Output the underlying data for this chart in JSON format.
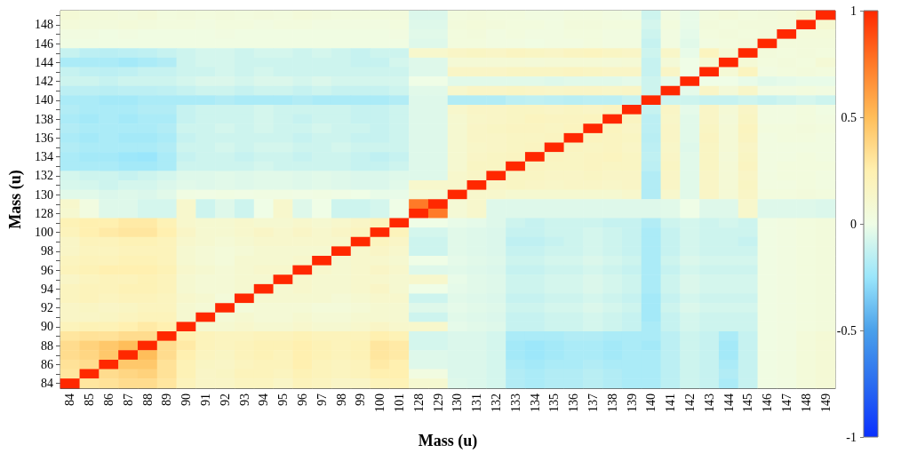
{
  "chart_data": {
    "type": "heatmap",
    "xlabel": "Mass (u)",
    "ylabel": "Mass (u)",
    "categories": [
      "84",
      "85",
      "86",
      "87",
      "88",
      "89",
      "90",
      "91",
      "92",
      "93",
      "94",
      "95",
      "96",
      "97",
      "98",
      "99",
      "100",
      "101",
      "128",
      "129",
      "130",
      "131",
      "132",
      "133",
      "134",
      "135",
      "136",
      "137",
      "138",
      "139",
      "140",
      "141",
      "142",
      "143",
      "144",
      "145",
      "146",
      "147",
      "148",
      "149"
    ],
    "y_categories": [
      null,
      "148",
      null,
      "146",
      null,
      "144",
      null,
      "142",
      null,
      "140",
      null,
      "138",
      null,
      "136",
      null,
      "134",
      null,
      "132",
      null,
      "130",
      null,
      "128",
      null,
      "100",
      null,
      "98",
      null,
      "96",
      null,
      "94",
      null,
      "92",
      null,
      "90",
      null,
      "88",
      null,
      "86",
      null,
      "84"
    ],
    "clim": [
      -1,
      1
    ],
    "cticks": [
      -1,
      -0.5,
      0,
      0.5,
      1
    ],
    "cells": [
      [
        0.08,
        0.06,
        0.06,
        0.05,
        0.07,
        0.04,
        0.05,
        0.04,
        0.05,
        0.04,
        0.05,
        0.04,
        0.06,
        0.05,
        0.04,
        0.04,
        0.04,
        0.05,
        -0.06,
        -0.06,
        0.04,
        0.05,
        0.04,
        0.04,
        0.03,
        0.03,
        0.04,
        0.04,
        0.03,
        0.02,
        -0.1,
        0.03,
        -0.02,
        0.04,
        0.06,
        0.04,
        0.05,
        0.06,
        0.1,
        1
      ],
      [
        0.06,
        0.05,
        0.05,
        0.06,
        0.05,
        0.04,
        0.04,
        0.03,
        0.04,
        0.04,
        0.03,
        0.04,
        0.04,
        0.03,
        0.03,
        0.03,
        0.03,
        0.04,
        -0.05,
        -0.05,
        0.05,
        0.06,
        0.05,
        0.04,
        0.04,
        0.03,
        0.05,
        0.05,
        0.04,
        0.04,
        -0.08,
        0.04,
        -0.02,
        0.05,
        0.04,
        0.05,
        0.05,
        0.06,
        1,
        0.1
      ],
      [
        0.03,
        0.03,
        0.02,
        0.03,
        0.02,
        0.02,
        0.02,
        0.02,
        0.03,
        0.02,
        0.02,
        0.02,
        0.02,
        0.02,
        0.02,
        0.02,
        0.02,
        0.03,
        -0.04,
        -0.04,
        0.04,
        0.05,
        0.03,
        0.04,
        0.03,
        0.03,
        0.04,
        0.04,
        0.03,
        0.03,
        -0.1,
        0.03,
        -0.03,
        0.04,
        0.05,
        0.04,
        0.05,
        1,
        0.06,
        0.06
      ],
      [
        0.02,
        0.02,
        0.02,
        0.02,
        0.02,
        0.02,
        0.02,
        0.02,
        0.02,
        0.02,
        0.02,
        0.02,
        0.02,
        0.02,
        0.02,
        0.02,
        0.02,
        0.02,
        -0.05,
        -0.05,
        0.04,
        0.04,
        0.03,
        0.03,
        0.02,
        0.03,
        0.03,
        0.04,
        0.03,
        0.03,
        -0.12,
        0.03,
        -0.04,
        0.03,
        0.04,
        0.05,
        1,
        0.05,
        0.05,
        0.05
      ],
      [
        -0.12,
        -0.15,
        -0.16,
        -0.15,
        -0.14,
        -0.12,
        -0.1,
        -0.08,
        -0.08,
        -0.1,
        -0.08,
        -0.08,
        -0.1,
        -0.08,
        -0.1,
        -0.12,
        -0.1,
        -0.1,
        0.12,
        0.12,
        0.15,
        0.16,
        0.15,
        0.17,
        0.16,
        0.15,
        0.17,
        0.18,
        0.16,
        0.15,
        -0.1,
        0.14,
        -0.02,
        0.18,
        0.08,
        1,
        0.05,
        0.04,
        0.05,
        0.04
      ],
      [
        -0.2,
        -0.2,
        -0.2,
        -0.22,
        -0.2,
        -0.18,
        -0.1,
        -0.08,
        -0.08,
        -0.1,
        -0.1,
        -0.1,
        -0.1,
        -0.1,
        -0.1,
        -0.12,
        -0.12,
        -0.08,
        -0.05,
        -0.05,
        0.08,
        0.08,
        0.08,
        0.08,
        0.07,
        0.08,
        0.08,
        0.08,
        0.07,
        0.08,
        -0.12,
        0.07,
        0,
        0.08,
        1,
        0.08,
        0.04,
        0.05,
        0.04,
        0.08
      ],
      [
        -0.12,
        -0.14,
        -0.15,
        -0.14,
        -0.12,
        -0.12,
        -0.1,
        -0.1,
        -0.08,
        -0.1,
        -0.08,
        -0.1,
        -0.1,
        -0.1,
        -0.1,
        -0.1,
        -0.1,
        -0.1,
        -0.05,
        -0.05,
        0.15,
        0.15,
        0.15,
        0.16,
        0.16,
        0.16,
        0.17,
        0.16,
        0.15,
        0.15,
        -0.12,
        0.15,
        0,
        1,
        0.08,
        0.18,
        0.03,
        0.04,
        0.05,
        0.04
      ],
      [
        -0.1,
        -0.1,
        -0.12,
        -0.1,
        -0.1,
        -0.1,
        -0.08,
        -0.06,
        -0.06,
        -0.08,
        -0.06,
        -0.06,
        -0.08,
        -0.06,
        -0.08,
        -0.08,
        -0.08,
        -0.08,
        0,
        0,
        -0.04,
        -0.04,
        -0.04,
        -0.04,
        -0.04,
        -0.05,
        -0.04,
        -0.04,
        -0.04,
        -0.03,
        -0.1,
        -0.03,
        1,
        0,
        0,
        -0.02,
        -0.04,
        -0.03,
        -0.02,
        -0.02
      ],
      [
        -0.15,
        -0.15,
        -0.16,
        -0.15,
        -0.15,
        -0.14,
        -0.12,
        -0.1,
        -0.1,
        -0.12,
        -0.1,
        -0.1,
        -0.12,
        -0.1,
        -0.12,
        -0.12,
        -0.12,
        -0.1,
        -0.04,
        -0.04,
        0.12,
        0.15,
        0.15,
        0.16,
        0.15,
        0.14,
        0.15,
        0.15,
        0.14,
        0.15,
        -0.1,
        1,
        -0.03,
        0.15,
        0.07,
        0.14,
        0.03,
        0.03,
        0.04,
        0.03
      ],
      [
        -0.2,
        -0.2,
        -0.22,
        -0.22,
        -0.2,
        -0.2,
        -0.2,
        -0.2,
        -0.18,
        -0.2,
        -0.2,
        -0.2,
        -0.18,
        -0.2,
        -0.2,
        -0.2,
        -0.2,
        -0.18,
        -0.05,
        -0.05,
        -0.18,
        -0.18,
        -0.18,
        -0.15,
        -0.14,
        -0.15,
        -0.16,
        -0.15,
        -0.15,
        -0.12,
        1,
        -0.1,
        -0.1,
        -0.12,
        -0.12,
        -0.1,
        -0.12,
        -0.1,
        -0.08,
        -0.1
      ],
      [
        -0.18,
        -0.2,
        -0.2,
        -0.2,
        -0.18,
        -0.18,
        -0.12,
        -0.1,
        -0.1,
        -0.1,
        -0.08,
        -0.1,
        -0.1,
        -0.1,
        -0.1,
        -0.12,
        -0.12,
        -0.1,
        -0.05,
        -0.05,
        0.12,
        0.15,
        0.15,
        0.16,
        0.16,
        0.15,
        0.16,
        0.15,
        0.17,
        1,
        -0.12,
        0.15,
        -0.03,
        0.15,
        0.08,
        0.15,
        0.03,
        0.03,
        0.04,
        0.02
      ],
      [
        -0.2,
        -0.22,
        -0.2,
        -0.22,
        -0.2,
        -0.2,
        -0.12,
        -0.1,
        -0.1,
        -0.1,
        -0.08,
        -0.1,
        -0.12,
        -0.1,
        -0.1,
        -0.12,
        -0.12,
        -0.1,
        -0.05,
        -0.05,
        0.1,
        0.14,
        0.15,
        0.16,
        0.18,
        0.17,
        0.17,
        0.18,
        1,
        0.17,
        -0.15,
        0.14,
        -0.04,
        0.15,
        0.07,
        0.16,
        0.03,
        0.03,
        0.04,
        0.03
      ],
      [
        -0.18,
        -0.2,
        -0.2,
        -0.2,
        -0.2,
        -0.18,
        -0.1,
        -0.1,
        -0.08,
        -0.1,
        -0.08,
        -0.1,
        -0.1,
        -0.08,
        -0.1,
        -0.1,
        -0.12,
        -0.1,
        -0.05,
        -0.05,
        0.1,
        0.15,
        0.16,
        0.17,
        0.17,
        0.16,
        0.18,
        1,
        0.18,
        0.15,
        -0.15,
        0.15,
        -0.04,
        0.16,
        0.08,
        0.18,
        0.04,
        0.04,
        0.05,
        0.04
      ],
      [
        -0.2,
        -0.22,
        -0.2,
        -0.22,
        -0.22,
        -0.2,
        -0.12,
        -0.1,
        -0.1,
        -0.1,
        -0.1,
        -0.1,
        -0.12,
        -0.1,
        -0.1,
        -0.12,
        -0.12,
        -0.1,
        -0.05,
        -0.05,
        0.1,
        0.15,
        0.15,
        0.16,
        0.16,
        0.17,
        1,
        0.18,
        0.17,
        0.16,
        -0.16,
        0.15,
        -0.04,
        0.17,
        0.08,
        0.17,
        0.03,
        0.04,
        0.04,
        0.03
      ],
      [
        -0.18,
        -0.2,
        -0.2,
        -0.2,
        -0.2,
        -0.18,
        -0.1,
        -0.1,
        -0.08,
        -0.1,
        -0.08,
        -0.08,
        -0.1,
        -0.1,
        -0.08,
        -0.1,
        -0.1,
        -0.1,
        -0.05,
        -0.05,
        0.1,
        0.14,
        0.15,
        0.16,
        0.17,
        1,
        0.17,
        0.16,
        0.17,
        0.15,
        -0.15,
        0.14,
        -0.05,
        0.16,
        0.08,
        0.15,
        0.03,
        0.03,
        0.03,
        0.03
      ],
      [
        -0.2,
        -0.22,
        -0.22,
        -0.24,
        -0.25,
        -0.2,
        -0.12,
        -0.1,
        -0.1,
        -0.12,
        -0.1,
        -0.1,
        -0.12,
        -0.1,
        -0.1,
        -0.12,
        -0.14,
        -0.12,
        -0.05,
        -0.05,
        0.1,
        0.15,
        0.16,
        0.17,
        1,
        0.17,
        0.16,
        0.17,
        0.18,
        0.16,
        -0.14,
        0.15,
        -0.04,
        0.16,
        0.07,
        0.16,
        0.03,
        0.03,
        0.04,
        0.03
      ],
      [
        -0.2,
        -0.2,
        -0.2,
        -0.22,
        -0.22,
        -0.2,
        -0.1,
        -0.1,
        -0.1,
        -0.1,
        -0.08,
        -0.1,
        -0.1,
        -0.1,
        -0.1,
        -0.12,
        -0.12,
        -0.1,
        -0.05,
        -0.05,
        0.1,
        0.16,
        0.16,
        1,
        0.17,
        0.16,
        0.16,
        0.17,
        0.16,
        0.16,
        -0.15,
        0.16,
        -0.04,
        0.16,
        0.08,
        0.17,
        0.03,
        0.04,
        0.04,
        0.04
      ],
      [
        -0.08,
        -0.1,
        -0.1,
        -0.12,
        -0.1,
        -0.08,
        -0.05,
        -0.05,
        -0.04,
        -0.05,
        -0.04,
        -0.04,
        -0.05,
        -0.04,
        -0.05,
        -0.06,
        -0.06,
        -0.05,
        -0.05,
        -0.05,
        0.12,
        0.15,
        1,
        0.16,
        0.16,
        0.15,
        0.15,
        0.16,
        0.15,
        0.15,
        -0.18,
        0.15,
        -0.04,
        0.15,
        0.08,
        0.15,
        0.03,
        0.04,
        0.04,
        0.03
      ],
      [
        -0.07,
        -0.08,
        -0.1,
        -0.08,
        -0.08,
        -0.06,
        -0.04,
        -0.05,
        -0.04,
        -0.05,
        -0.04,
        -0.04,
        -0.05,
        -0.04,
        -0.05,
        -0.06,
        -0.06,
        -0.04,
        0.12,
        0.12,
        0.12,
        1,
        0.15,
        0.16,
        0.15,
        0.14,
        0.15,
        0.15,
        0.14,
        0.15,
        -0.18,
        0.15,
        -0.04,
        0.15,
        0.08,
        0.16,
        0.03,
        0.03,
        0.04,
        0.03
      ],
      [
        -0.04,
        -0.04,
        -0.06,
        -0.05,
        -0.06,
        -0.04,
        0.02,
        0.01,
        0.02,
        0.01,
        0.02,
        0.02,
        0.01,
        0.02,
        0.01,
        0,
        -0.02,
        -0.02,
        0.08,
        0.08,
        1,
        0.12,
        0.12,
        0.1,
        0.1,
        0.1,
        0.1,
        0.1,
        0.1,
        0.12,
        -0.18,
        0.12,
        -0.04,
        0.15,
        0.08,
        0.15,
        0.04,
        0.04,
        0.05,
        0.04
      ],
      [
        0.12,
        0.03,
        -0.05,
        -0.05,
        -0.08,
        -0.08,
        0.12,
        -0.1,
        -0.05,
        -0.1,
        0,
        0.12,
        -0.05,
        0,
        -0.1,
        -0.1,
        -0.08,
        0,
        0.75,
        1,
        0.08,
        0.12,
        -0.05,
        -0.05,
        -0.05,
        -0.05,
        -0.05,
        -0.05,
        -0.05,
        -0.05,
        -0.05,
        -0.04,
        0,
        -0.05,
        -0.05,
        0.12,
        -0.05,
        -0.05,
        -0.05,
        -0.06
      ],
      [
        0.1,
        0.03,
        -0.05,
        -0.05,
        -0.08,
        -0.08,
        0.12,
        -0.1,
        -0.05,
        -0.1,
        0,
        0.12,
        -0.05,
        0,
        -0.1,
        -0.1,
        -0.08,
        0,
        1,
        0.75,
        0.08,
        0.12,
        -0.05,
        -0.05,
        -0.05,
        -0.05,
        -0.05,
        -0.05,
        -0.05,
        -0.05,
        -0.05,
        -0.04,
        0,
        -0.05,
        -0.05,
        0.12,
        -0.05,
        -0.05,
        -0.05,
        -0.06
      ],
      [
        0.22,
        0.25,
        0.25,
        0.28,
        0.28,
        0.22,
        0.12,
        0.1,
        0.1,
        0.12,
        0.1,
        0.1,
        0.12,
        0.1,
        0.12,
        0.15,
        0.2,
        1,
        0,
        0,
        -0.02,
        -0.03,
        -0.05,
        -0.1,
        -0.12,
        -0.1,
        -0.1,
        -0.1,
        -0.12,
        -0.12,
        -0.18,
        -0.1,
        -0.08,
        -0.1,
        -0.08,
        -0.1,
        0.02,
        0.03,
        0.04,
        0.05
      ],
      [
        0.2,
        0.25,
        0.28,
        0.3,
        0.3,
        0.25,
        0.15,
        0.1,
        0.1,
        0.12,
        0.15,
        0.12,
        0.15,
        0.12,
        0.15,
        0.18,
        1,
        0.2,
        -0.08,
        -0.08,
        -0.04,
        -0.05,
        -0.06,
        -0.12,
        -0.12,
        -0.1,
        -0.1,
        -0.08,
        -0.1,
        -0.12,
        -0.2,
        -0.12,
        -0.08,
        -0.1,
        -0.1,
        -0.1,
        0.02,
        0.03,
        0.04,
        0.05
      ],
      [
        0.15,
        0.2,
        0.2,
        0.22,
        0.22,
        0.2,
        0.12,
        0.1,
        0.08,
        0.1,
        0.12,
        0.12,
        0.12,
        0.12,
        0.12,
        1,
        0.18,
        0.15,
        -0.1,
        -0.1,
        -0.04,
        -0.05,
        -0.06,
        -0.14,
        -0.14,
        -0.12,
        -0.1,
        -0.08,
        -0.1,
        -0.12,
        -0.2,
        -0.12,
        -0.08,
        -0.1,
        -0.1,
        -0.12,
        0.02,
        0.03,
        0.04,
        0.05
      ],
      [
        0.15,
        0.18,
        0.18,
        0.2,
        0.2,
        0.2,
        0.1,
        0.08,
        0.06,
        0.08,
        0.1,
        0.1,
        0.1,
        0.1,
        1,
        0.12,
        0.15,
        0.12,
        -0.1,
        -0.1,
        -0.04,
        -0.05,
        -0.06,
        -0.12,
        -0.12,
        -0.1,
        -0.1,
        -0.08,
        -0.1,
        -0.12,
        -0.2,
        -0.12,
        -0.08,
        -0.1,
        -0.1,
        -0.1,
        0.02,
        0.03,
        0.04,
        0.05
      ],
      [
        0.18,
        0.2,
        0.2,
        0.22,
        0.22,
        0.2,
        0.1,
        0.08,
        0.06,
        0.1,
        0.1,
        0.1,
        0.12,
        1,
        0.1,
        0.12,
        0.12,
        0.1,
        0,
        0,
        -0.03,
        -0.04,
        -0.05,
        -0.1,
        -0.1,
        -0.08,
        -0.08,
        -0.06,
        -0.08,
        -0.1,
        -0.2,
        -0.1,
        -0.06,
        -0.08,
        -0.08,
        -0.08,
        0.02,
        0.03,
        0.04,
        0.05
      ],
      [
        0.2,
        0.22,
        0.25,
        0.25,
        0.25,
        0.22,
        0.12,
        0.1,
        0.08,
        0.1,
        0.12,
        0.12,
        1,
        0.12,
        0.1,
        0.12,
        0.15,
        0.12,
        -0.05,
        -0.05,
        -0.04,
        -0.05,
        -0.06,
        -0.12,
        -0.12,
        -0.1,
        -0.1,
        -0.08,
        -0.1,
        -0.12,
        -0.2,
        -0.12,
        -0.08,
        -0.1,
        -0.1,
        -0.1,
        0.02,
        0.03,
        0.04,
        0.05
      ],
      [
        0.15,
        0.18,
        0.2,
        0.2,
        0.22,
        0.2,
        0.1,
        0.08,
        0.08,
        0.1,
        0.1,
        1,
        0.12,
        0.1,
        0.1,
        0.12,
        0.12,
        0.1,
        0.12,
        0.12,
        -0.02,
        -0.04,
        -0.05,
        -0.1,
        -0.1,
        -0.08,
        -0.08,
        -0.06,
        -0.08,
        -0.1,
        -0.2,
        -0.1,
        -0.06,
        -0.08,
        -0.08,
        -0.08,
        0.02,
        0.03,
        0.04,
        0.05
      ],
      [
        0.18,
        0.2,
        0.2,
        0.22,
        0.22,
        0.2,
        0.1,
        0.08,
        0.08,
        0.1,
        1,
        0.1,
        0.12,
        0.1,
        0.1,
        0.12,
        0.15,
        0.1,
        0,
        0,
        -0.03,
        -0.04,
        -0.05,
        -0.1,
        -0.1,
        -0.08,
        -0.08,
        -0.06,
        -0.08,
        -0.1,
        -0.2,
        -0.1,
        -0.06,
        -0.08,
        -0.08,
        -0.08,
        0.02,
        0.03,
        0.04,
        0.05
      ],
      [
        0.18,
        0.2,
        0.18,
        0.2,
        0.2,
        0.18,
        0.12,
        0.1,
        0.06,
        1,
        0.1,
        0.1,
        0.1,
        0.1,
        0.08,
        0.1,
        0.12,
        0.12,
        -0.1,
        -0.1,
        -0.04,
        -0.05,
        -0.06,
        -0.12,
        -0.12,
        -0.1,
        -0.1,
        -0.08,
        -0.1,
        -0.12,
        -0.22,
        -0.12,
        -0.08,
        -0.1,
        -0.1,
        -0.1,
        0.02,
        0.03,
        0.04,
        0.05
      ],
      [
        0.15,
        0.16,
        0.15,
        0.16,
        0.18,
        0.18,
        0.1,
        0.08,
        1,
        0.06,
        0.08,
        0.08,
        0.08,
        0.06,
        0.06,
        0.08,
        0.1,
        0.1,
        -0.05,
        -0.05,
        -0.03,
        -0.04,
        -0.05,
        -0.1,
        -0.1,
        -0.08,
        -0.08,
        -0.06,
        -0.08,
        -0.1,
        -0.22,
        -0.1,
        -0.06,
        -0.08,
        -0.08,
        -0.08,
        0.02,
        0.03,
        0.04,
        0.05
      ],
      [
        0.15,
        0.15,
        0.16,
        0.18,
        0.2,
        0.2,
        0.1,
        1,
        0.08,
        0.1,
        0.08,
        0.08,
        0.1,
        0.08,
        0.08,
        0.1,
        0.1,
        0.1,
        -0.1,
        -0.1,
        -0.04,
        -0.05,
        -0.06,
        -0.12,
        -0.12,
        -0.1,
        -0.1,
        -0.08,
        -0.1,
        -0.12,
        -0.22,
        -0.12,
        -0.08,
        -0.1,
        -0.1,
        -0.1,
        0.02,
        0.03,
        0.04,
        0.05
      ],
      [
        0.2,
        0.22,
        0.22,
        0.25,
        0.28,
        0.25,
        1,
        0.1,
        0.1,
        0.12,
        0.1,
        0.1,
        0.12,
        0.1,
        0.1,
        0.12,
        0.15,
        0.12,
        0.12,
        0.12,
        -0.03,
        -0.04,
        -0.05,
        -0.12,
        -0.12,
        -0.1,
        -0.1,
        -0.08,
        -0.1,
        -0.12,
        -0.2,
        -0.12,
        -0.08,
        -0.1,
        -0.1,
        -0.1,
        0.02,
        0.03,
        0.04,
        0.05
      ],
      [
        0.3,
        0.32,
        0.32,
        0.35,
        0.35,
        1,
        0.25,
        0.2,
        0.18,
        0.18,
        0.2,
        0.2,
        0.22,
        0.2,
        0.2,
        0.2,
        0.25,
        0.22,
        -0.08,
        -0.08,
        -0.06,
        -0.06,
        -0.08,
        -0.2,
        -0.2,
        -0.2,
        -0.18,
        -0.18,
        -0.2,
        -0.2,
        -0.2,
        -0.15,
        -0.1,
        -0.12,
        -0.2,
        -0.12,
        0.02,
        0.03,
        0.06,
        0.08
      ],
      [
        0.35,
        0.4,
        0.45,
        0.5,
        1,
        0.35,
        0.28,
        0.2,
        0.18,
        0.2,
        0.22,
        0.22,
        0.25,
        0.22,
        0.2,
        0.22,
        0.3,
        0.28,
        -0.08,
        -0.08,
        -0.06,
        -0.06,
        -0.08,
        -0.22,
        -0.24,
        -0.22,
        -0.2,
        -0.2,
        -0.22,
        -0.2,
        -0.22,
        -0.15,
        -0.1,
        -0.12,
        -0.22,
        -0.12,
        0.02,
        0.03,
        0.06,
        0.08
      ],
      [
        0.35,
        0.38,
        0.45,
        1,
        0.5,
        0.35,
        0.25,
        0.18,
        0.16,
        0.2,
        0.22,
        0.2,
        0.25,
        0.22,
        0.2,
        0.22,
        0.3,
        0.28,
        -0.05,
        -0.05,
        -0.06,
        -0.06,
        -0.08,
        -0.22,
        -0.24,
        -0.22,
        -0.2,
        -0.2,
        -0.22,
        -0.2,
        -0.2,
        -0.15,
        -0.1,
        -0.12,
        -0.22,
        -0.12,
        0.02,
        0.03,
        0.06,
        0.08
      ],
      [
        0.32,
        0.35,
        1,
        0.45,
        0.45,
        0.32,
        0.22,
        0.16,
        0.15,
        0.18,
        0.2,
        0.2,
        0.25,
        0.2,
        0.18,
        0.2,
        0.28,
        0.25,
        -0.05,
        -0.05,
        -0.06,
        -0.06,
        -0.08,
        -0.2,
        -0.22,
        -0.2,
        -0.2,
        -0.18,
        -0.2,
        -0.2,
        -0.2,
        -0.15,
        -0.1,
        -0.12,
        -0.2,
        -0.12,
        0.02,
        0.03,
        0.06,
        0.08
      ],
      [
        0.3,
        1,
        0.35,
        0.38,
        0.4,
        0.32,
        0.22,
        0.15,
        0.16,
        0.2,
        0.2,
        0.18,
        0.22,
        0.2,
        0.18,
        0.2,
        0.25,
        0.25,
        0.03,
        0.03,
        -0.06,
        -0.06,
        -0.08,
        -0.18,
        -0.2,
        -0.18,
        -0.18,
        -0.16,
        -0.18,
        -0.2,
        -0.2,
        -0.15,
        -0.1,
        -0.12,
        -0.18,
        -0.12,
        0.02,
        0.03,
        0.06,
        0.08
      ],
      [
        1,
        0.3,
        0.32,
        0.35,
        0.35,
        0.3,
        0.2,
        0.15,
        0.15,
        0.18,
        0.18,
        0.15,
        0.2,
        0.18,
        0.15,
        0.15,
        0.2,
        0.22,
        0.1,
        0.1,
        -0.05,
        -0.06,
        -0.08,
        -0.18,
        -0.2,
        -0.18,
        -0.18,
        -0.16,
        -0.18,
        -0.2,
        -0.2,
        -0.15,
        -0.1,
        -0.12,
        -0.2,
        -0.12,
        0.02,
        0.03,
        0.06,
        0.08
      ]
    ]
  }
}
